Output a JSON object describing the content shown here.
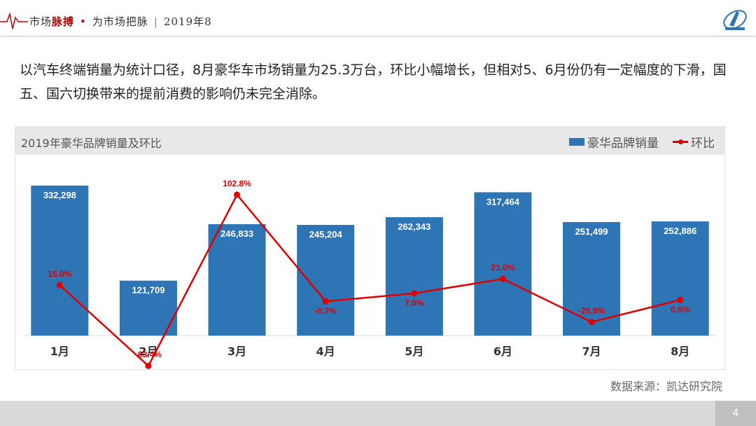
{
  "header": {
    "brand_part1": "市场",
    "brand_part2": "脉搏",
    "bullet": "•",
    "slogan": "为市场把脉",
    "divider": "|",
    "period": "2019年8"
  },
  "description": "以汽车终端销量为统计口径，8月豪华车市场销量为25.3万台，环比小幅增长，但相对5、6月份仍有一定幅度的下滑，国五、国六切换带来的提前消费的影响仍未完全消除。",
  "chart_data": {
    "type": "bar",
    "title": "2019年豪华品牌销量及环比",
    "categories": [
      "1月",
      "2月",
      "3月",
      "4月",
      "5月",
      "6月",
      "7月",
      "8月"
    ],
    "series": [
      {
        "name": "豪华品牌销量",
        "type": "bar",
        "values": [
          332298,
          121709,
          246833,
          245204,
          262343,
          317464,
          251499,
          252886
        ],
        "labels": [
          "332,298",
          "121,709",
          "246,833",
          "245,204",
          "262,343",
          "317,464",
          "251,499",
          "252,886"
        ],
        "color": "#2e75b6"
      },
      {
        "name": "环比",
        "type": "line",
        "values": [
          15.0,
          -63.4,
          102.8,
          -0.7,
          7.0,
          21.0,
          -20.8,
          0.6
        ],
        "labels": [
          "15.0%",
          "-63.4%",
          "102.8%",
          "-0.7%",
          "7.0%",
          "21.0%",
          "-20.8%",
          "0.6%"
        ],
        "color": "#e00000"
      }
    ],
    "legend": "top-right",
    "grid": false
  },
  "source": "数据来源：凯达研究院",
  "page_number": "4"
}
